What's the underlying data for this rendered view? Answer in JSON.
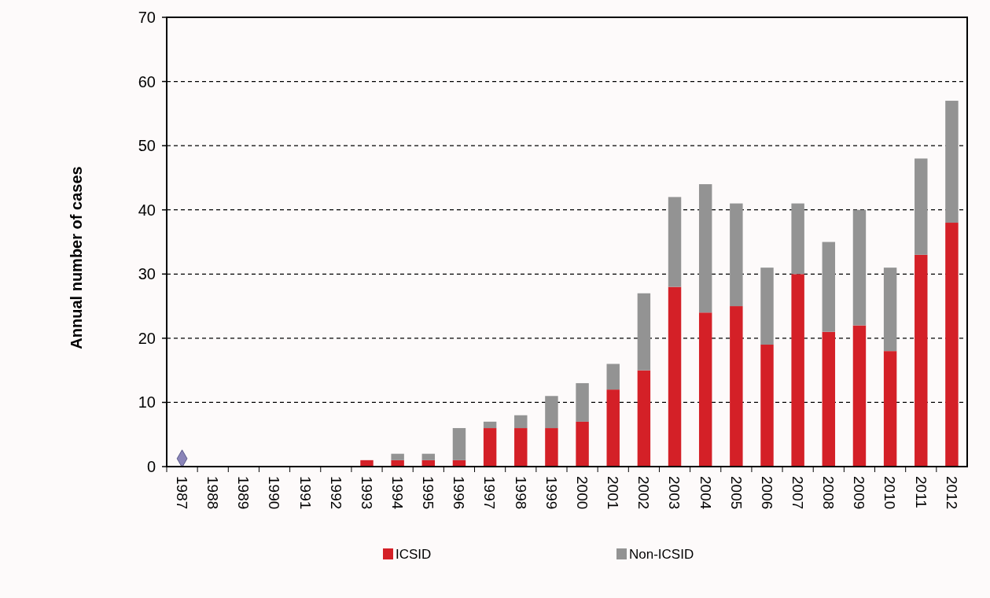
{
  "chart_data": {
    "type": "bar",
    "stacked": true,
    "ylabel": "Annual number of cases",
    "categories": [
      "1987",
      "1988",
      "1989",
      "1990",
      "1991",
      "1992",
      "1993",
      "1994",
      "1995",
      "1996",
      "1997",
      "1998",
      "1999",
      "2000",
      "2001",
      "2002",
      "2003",
      "2004",
      "2005",
      "2006",
      "2007",
      "2008",
      "2009",
      "2010",
      "2011",
      "2012"
    ],
    "series": [
      {
        "name": "ICSID",
        "color": "#d42027",
        "values": [
          0,
          0,
          0,
          0,
          0,
          0,
          1,
          1,
          1,
          1,
          6,
          6,
          6,
          7,
          12,
          15,
          28,
          24,
          25,
          19,
          30,
          21,
          22,
          18,
          33,
          38
        ]
      },
      {
        "name": "Non-ICSID",
        "color": "#939393",
        "values": [
          0,
          0,
          0,
          0,
          0,
          0,
          0,
          1,
          1,
          5,
          1,
          2,
          5,
          6,
          4,
          12,
          14,
          20,
          16,
          12,
          11,
          14,
          18,
          13,
          15,
          19
        ]
      },
      {
        "type": "scatter",
        "color": "#8a84b8",
        "values": [
          1,
          null,
          null,
          null,
          null,
          null,
          null,
          null,
          null,
          null,
          null,
          null,
          null,
          null,
          null,
          null,
          null,
          null,
          null,
          null,
          null,
          null,
          null,
          null,
          null,
          null
        ],
        "marker": "diamond"
      }
    ],
    "ylim": [
      0,
      70
    ],
    "yticks": [
      0,
      10,
      20,
      30,
      40,
      50,
      60,
      70
    ],
    "grid": "y",
    "legend": "bottom"
  }
}
